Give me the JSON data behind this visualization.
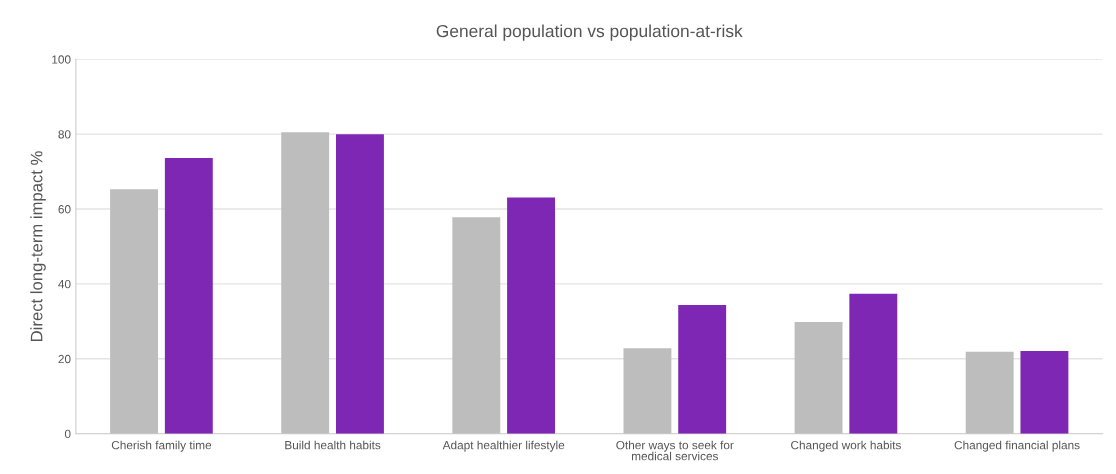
{
  "chart_data": {
    "type": "bar",
    "title": "General population vs population-at-risk",
    "ylabel": "Direct long-term impact %",
    "categories": [
      "Cherish family time",
      "Build health habits",
      "Adapt healthier lifestyle",
      "Other ways to seek for medical services",
      "Changed work habits",
      "Changed financial plans"
    ],
    "series": [
      {
        "color": "#bdbdbd",
        "values": [
          65.3,
          80.5,
          57.8,
          22.8,
          29.8,
          21.9
        ]
      },
      {
        "color": "#7e27b5",
        "values": [
          73.6,
          80.0,
          63.1,
          34.4,
          37.4,
          22.1
        ]
      }
    ],
    "ylim": [
      0,
      100
    ],
    "yticks": [
      0,
      20,
      40,
      60,
      80,
      100
    ],
    "grid": "y"
  }
}
